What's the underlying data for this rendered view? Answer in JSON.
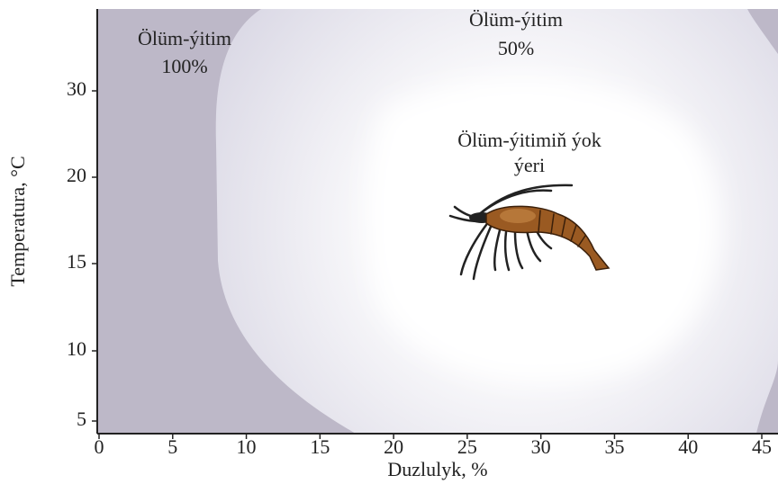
{
  "chart_data": {
    "type": "region",
    "xlabel": "Duzlulyk, %",
    "ylabel": "Temperatura, °C",
    "xlim": [
      0,
      46
    ],
    "xticks": [
      0,
      5,
      10,
      15,
      20,
      25,
      30,
      35,
      40,
      45
    ],
    "yticks": [
      30,
      20,
      15,
      10,
      5
    ],
    "annotations": [
      {
        "lines": [
          "Ölüm-ýitim",
          "100%"
        ]
      },
      {
        "lines": [
          "Ölüm-ýitim",
          "50%"
        ]
      },
      {
        "lines": [
          "Ölüm-ýitimiň ýok",
          "ýeri"
        ]
      }
    ]
  }
}
